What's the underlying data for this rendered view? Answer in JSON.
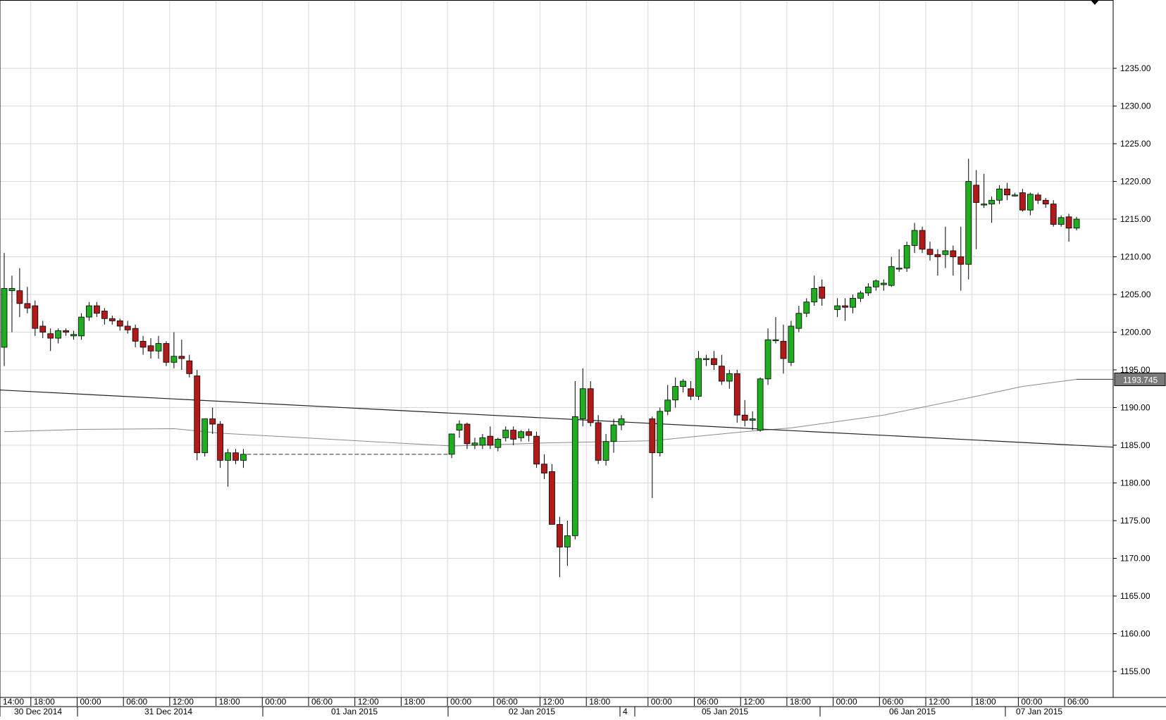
{
  "chart_data": {
    "type": "candlestick",
    "title": "",
    "xlabel": "",
    "ylabel": "",
    "ylim": [
      1150,
      1240
    ],
    "grid": true,
    "colors": {
      "up": "#1fae1f",
      "down": "#b21a1a",
      "wick": "#000000",
      "grid": "#d9d9d9",
      "moving_average": "#8a8a8a",
      "trendline": "#222222",
      "price_label_bg": "#7a7a7a"
    },
    "y_ticks": [
      "1155.00",
      "1160.00",
      "1165.00",
      "1170.00",
      "1175.00",
      "1180.00",
      "1185.00",
      "1190.00",
      "1195.00",
      "1200.00",
      "1205.00",
      "1210.00",
      "1215.00",
      "1220.00",
      "1225.00",
      "1230.00",
      "1235.00"
    ],
    "x_time_labels": [
      "14:00",
      "18:00",
      "00:00",
      "06:00",
      "12:00",
      "18:00",
      "00:00",
      "06:00",
      "12:00",
      "18:00",
      "00:00",
      "06:00",
      "12:00",
      "18:00",
      "00:00",
      "06:00",
      "12:00",
      "18:00",
      "00:00",
      "06:00",
      "12:00",
      "18:00",
      "00:00",
      "06:00"
    ],
    "x_date_labels": [
      "30 Dec 2014",
      "31 Dec 2014",
      "01 Jan 2015",
      "02 Jan 2015",
      "4",
      "05 Jan 2015",
      "06 Jan 2015",
      "07 Jan 2015"
    ],
    "last_price_label": "1193.745",
    "candles": [
      {
        "time": "30 Dec 2014 14:00",
        "open": 1198.0,
        "high": 1210.5,
        "low": 1195.5,
        "close": 1205.8
      },
      {
        "time": "30 Dec 2014 15:00",
        "open": 1205.5,
        "high": 1207.5,
        "low": 1200.0,
        "close": 1205.8
      },
      {
        "time": "30 Dec 2014 16:00",
        "open": 1205.5,
        "high": 1208.5,
        "low": 1202.0,
        "close": 1203.8
      },
      {
        "time": "30 Dec 2014 17:00",
        "open": 1203.8,
        "high": 1206.0,
        "low": 1202.5,
        "close": 1203.2
      },
      {
        "time": "30 Dec 2014 18:00",
        "open": 1203.5,
        "high": 1204.2,
        "low": 1199.5,
        "close": 1200.5
      },
      {
        "time": "30 Dec 2014 19:00",
        "open": 1200.8,
        "high": 1201.5,
        "low": 1199.2,
        "close": 1200.0
      },
      {
        "time": "30 Dec 2014 20:00",
        "open": 1199.8,
        "high": 1200.5,
        "low": 1197.5,
        "close": 1199.2
      },
      {
        "time": "30 Dec 2014 21:00",
        "open": 1199.2,
        "high": 1200.5,
        "low": 1198.5,
        "close": 1200.2
      },
      {
        "time": "30 Dec 2014 22:00",
        "open": 1200.2,
        "high": 1200.5,
        "low": 1199.5,
        "close": 1200.0
      },
      {
        "time": "30 Dec 2014 23:00",
        "open": 1199.5,
        "high": 1200.2,
        "low": 1199.0,
        "close": 1199.7
      },
      {
        "time": "31 Dec 2014 00:00",
        "open": 1199.5,
        "high": 1202.5,
        "low": 1199.0,
        "close": 1202.0
      },
      {
        "time": "31 Dec 2014 01:00",
        "open": 1202.0,
        "high": 1204.0,
        "low": 1201.5,
        "close": 1203.5
      },
      {
        "time": "31 Dec 2014 02:00",
        "open": 1203.5,
        "high": 1204.0,
        "low": 1202.0,
        "close": 1202.5
      },
      {
        "time": "31 Dec 2014 03:00",
        "open": 1202.8,
        "high": 1203.2,
        "low": 1201.0,
        "close": 1201.8
      },
      {
        "time": "31 Dec 2014 04:00",
        "open": 1201.8,
        "high": 1202.2,
        "low": 1201.0,
        "close": 1201.5
      },
      {
        "time": "31 Dec 2014 05:00",
        "open": 1201.5,
        "high": 1201.8,
        "low": 1200.2,
        "close": 1200.8
      },
      {
        "time": "31 Dec 2014 06:00",
        "open": 1200.8,
        "high": 1201.5,
        "low": 1199.8,
        "close": 1200.3
      },
      {
        "time": "31 Dec 2014 07:00",
        "open": 1200.5,
        "high": 1201.0,
        "low": 1198.0,
        "close": 1198.8
      },
      {
        "time": "31 Dec 2014 08:00",
        "open": 1198.8,
        "high": 1199.5,
        "low": 1197.0,
        "close": 1198.0
      },
      {
        "time": "31 Dec 2014 09:00",
        "open": 1198.2,
        "high": 1199.2,
        "low": 1196.5,
        "close": 1197.5
      },
      {
        "time": "31 Dec 2014 10:00",
        "open": 1197.5,
        "high": 1199.5,
        "low": 1196.5,
        "close": 1198.5
      },
      {
        "time": "31 Dec 2014 11:00",
        "open": 1198.5,
        "high": 1198.8,
        "low": 1195.5,
        "close": 1196.0
      },
      {
        "time": "31 Dec 2014 12:00",
        "open": 1196.0,
        "high": 1200.0,
        "low": 1195.2,
        "close": 1196.8
      },
      {
        "time": "31 Dec 2014 13:00",
        "open": 1196.8,
        "high": 1199.0,
        "low": 1195.0,
        "close": 1196.5
      },
      {
        "time": "31 Dec 2014 14:00",
        "open": 1196.2,
        "high": 1197.0,
        "low": 1194.0,
        "close": 1194.5
      },
      {
        "time": "31 Dec 2014 15:00",
        "open": 1194.2,
        "high": 1195.0,
        "low": 1183.0,
        "close": 1184.0
      },
      {
        "time": "31 Dec 2014 16:00",
        "open": 1184.0,
        "high": 1188.5,
        "low": 1183.5,
        "close": 1188.5
      },
      {
        "time": "31 Dec 2014 17:00",
        "open": 1188.5,
        "high": 1190.0,
        "low": 1186.5,
        "close": 1187.8
      },
      {
        "time": "31 Dec 2014 18:00",
        "open": 1187.8,
        "high": 1188.2,
        "low": 1182.0,
        "close": 1183.0
      },
      {
        "time": "31 Dec 2014 19:00",
        "open": 1183.0,
        "high": 1184.5,
        "low": 1179.5,
        "close": 1184.0
      },
      {
        "time": "31 Dec 2014 20:00",
        "open": 1184.0,
        "high": 1184.5,
        "low": 1182.5,
        "close": 1183.0
      },
      {
        "time": "31 Dec 2014 21:00",
        "open": 1183.0,
        "high": 1184.5,
        "low": 1182.0,
        "close": 1183.8
      },
      {
        "time": "02 Jan 2015 00:00",
        "open": 1183.8,
        "high": 1186.5,
        "low": 1183.3,
        "close": 1186.5
      },
      {
        "time": "02 Jan 2015 01:00",
        "open": 1187.0,
        "high": 1188.3,
        "low": 1186.0,
        "close": 1187.8
      },
      {
        "time": "02 Jan 2015 02:00",
        "open": 1187.8,
        "high": 1188.0,
        "low": 1184.5,
        "close": 1185.2
      },
      {
        "time": "02 Jan 2015 03:00",
        "open": 1185.0,
        "high": 1186.0,
        "low": 1184.5,
        "close": 1185.3
      },
      {
        "time": "02 Jan 2015 04:00",
        "open": 1185.0,
        "high": 1186.5,
        "low": 1184.5,
        "close": 1186.0
      },
      {
        "time": "02 Jan 2015 05:00",
        "open": 1186.2,
        "high": 1187.5,
        "low": 1184.5,
        "close": 1185.0
      },
      {
        "time": "02 Jan 2015 06:00",
        "open": 1184.7,
        "high": 1186.0,
        "low": 1184.2,
        "close": 1185.8
      },
      {
        "time": "02 Jan 2015 07:00",
        "open": 1186.0,
        "high": 1187.5,
        "low": 1185.5,
        "close": 1187.0
      },
      {
        "time": "02 Jan 2015 08:00",
        "open": 1187.0,
        "high": 1187.5,
        "low": 1185.0,
        "close": 1185.8
      },
      {
        "time": "02 Jan 2015 09:00",
        "open": 1186.0,
        "high": 1187.0,
        "low": 1185.5,
        "close": 1186.8
      },
      {
        "time": "02 Jan 2015 10:00",
        "open": 1186.8,
        "high": 1187.2,
        "low": 1185.5,
        "close": 1186.3
      },
      {
        "time": "02 Jan 2015 11:00",
        "open": 1186.2,
        "high": 1186.8,
        "low": 1182.0,
        "close": 1182.5
      },
      {
        "time": "02 Jan 2015 12:00",
        "open": 1182.5,
        "high": 1183.8,
        "low": 1180.5,
        "close": 1181.3
      },
      {
        "time": "02 Jan 2015 13:00",
        "open": 1181.5,
        "high": 1182.5,
        "low": 1174.5,
        "close": 1174.5
      },
      {
        "time": "02 Jan 2015 14:00",
        "open": 1174.5,
        "high": 1175.5,
        "low": 1167.5,
        "close": 1171.5
      },
      {
        "time": "02 Jan 2015 15:00",
        "open": 1171.5,
        "high": 1175.0,
        "low": 1169.0,
        "close": 1173.0
      },
      {
        "time": "02 Jan 2015 16:00",
        "open": 1173.0,
        "high": 1193.5,
        "low": 1172.5,
        "close": 1188.8
      },
      {
        "time": "02 Jan 2015 17:00",
        "open": 1188.5,
        "high": 1195.2,
        "low": 1187.5,
        "close": 1192.5
      },
      {
        "time": "02 Jan 2015 18:00",
        "open": 1192.5,
        "high": 1193.5,
        "low": 1187.5,
        "close": 1188.0
      },
      {
        "time": "02 Jan 2015 19:00",
        "open": 1188.0,
        "high": 1189.0,
        "low": 1182.5,
        "close": 1183.0
      },
      {
        "time": "02 Jan 2015 20:00",
        "open": 1183.0,
        "high": 1186.5,
        "low": 1182.3,
        "close": 1185.5
      },
      {
        "time": "02 Jan 2015 21:00",
        "open": 1185.5,
        "high": 1188.5,
        "low": 1184.0,
        "close": 1187.7
      },
      {
        "time": "02 Jan 2015 22:00",
        "open": 1187.7,
        "high": 1189.0,
        "low": 1187.0,
        "close": 1188.5
      },
      {
        "time": "05 Jan 2015 00:00",
        "open": 1188.5,
        "high": 1188.8,
        "low": 1178.0,
        "close": 1184.0
      },
      {
        "time": "05 Jan 2015 01:00",
        "open": 1184.0,
        "high": 1190.0,
        "low": 1183.5,
        "close": 1189.5
      },
      {
        "time": "05 Jan 2015 02:00",
        "open": 1189.5,
        "high": 1193.0,
        "low": 1189.0,
        "close": 1191.0
      },
      {
        "time": "05 Jan 2015 03:00",
        "open": 1191.0,
        "high": 1194.0,
        "low": 1190.0,
        "close": 1192.8
      },
      {
        "time": "05 Jan 2015 04:00",
        "open": 1192.8,
        "high": 1193.8,
        "low": 1192.0,
        "close": 1193.5
      },
      {
        "time": "05 Jan 2015 05:00",
        "open": 1192.5,
        "high": 1193.5,
        "low": 1191.0,
        "close": 1191.5
      },
      {
        "time": "05 Jan 2015 06:00",
        "open": 1191.5,
        "high": 1197.5,
        "low": 1191.0,
        "close": 1196.5
      },
      {
        "time": "05 Jan 2015 07:00",
        "open": 1196.5,
        "high": 1197.0,
        "low": 1195.5,
        "close": 1196.5
      },
      {
        "time": "05 Jan 2015 08:00",
        "open": 1196.5,
        "high": 1197.5,
        "low": 1195.0,
        "close": 1195.7
      },
      {
        "time": "05 Jan 2015 09:00",
        "open": 1195.5,
        "high": 1197.0,
        "low": 1193.0,
        "close": 1193.5
      },
      {
        "time": "05 Jan 2015 10:00",
        "open": 1193.5,
        "high": 1195.0,
        "low": 1192.5,
        "close": 1194.5
      },
      {
        "time": "05 Jan 2015 11:00",
        "open": 1194.5,
        "high": 1195.0,
        "low": 1188.0,
        "close": 1189.0
      },
      {
        "time": "05 Jan 2015 12:00",
        "open": 1189.0,
        "high": 1191.0,
        "low": 1187.5,
        "close": 1188.3
      },
      {
        "time": "05 Jan 2015 13:00",
        "open": 1188.3,
        "high": 1189.5,
        "low": 1187.0,
        "close": 1188.5
      },
      {
        "time": "05 Jan 2015 14:00",
        "open": 1187.0,
        "high": 1194.0,
        "low": 1186.8,
        "close": 1193.8
      },
      {
        "time": "05 Jan 2015 15:00",
        "open": 1193.8,
        "high": 1200.5,
        "low": 1193.0,
        "close": 1199.0
      },
      {
        "time": "05 Jan 2015 16:00",
        "open": 1199.0,
        "high": 1202.0,
        "low": 1198.5,
        "close": 1199.0
      },
      {
        "time": "05 Jan 2015 17:00",
        "open": 1198.8,
        "high": 1201.0,
        "low": 1194.5,
        "close": 1196.5
      },
      {
        "time": "05 Jan 2015 18:00",
        "open": 1196.0,
        "high": 1201.5,
        "low": 1195.5,
        "close": 1200.8
      },
      {
        "time": "05 Jan 2015 19:00",
        "open": 1200.5,
        "high": 1203.5,
        "low": 1200.0,
        "close": 1202.5
      },
      {
        "time": "05 Jan 2015 20:00",
        "open": 1202.5,
        "high": 1204.5,
        "low": 1202.0,
        "close": 1204.0
      },
      {
        "time": "05 Jan 2015 21:00",
        "open": 1204.0,
        "high": 1207.5,
        "low": 1203.5,
        "close": 1205.8
      },
      {
        "time": "05 Jan 2015 22:00",
        "open": 1206.0,
        "high": 1207.0,
        "low": 1203.5,
        "close": 1204.5
      },
      {
        "time": "06 Jan 2015 00:00",
        "open": 1203.0,
        "high": 1204.5,
        "low": 1202.0,
        "close": 1203.5
      },
      {
        "time": "06 Jan 2015 01:00",
        "open": 1203.5,
        "high": 1204.5,
        "low": 1201.5,
        "close": 1203.3
      },
      {
        "time": "06 Jan 2015 02:00",
        "open": 1203.3,
        "high": 1205.0,
        "low": 1202.5,
        "close": 1204.5
      },
      {
        "time": "06 Jan 2015 03:00",
        "open": 1204.5,
        "high": 1205.5,
        "low": 1204.0,
        "close": 1205.2
      },
      {
        "time": "06 Jan 2015 04:00",
        "open": 1205.2,
        "high": 1206.5,
        "low": 1204.8,
        "close": 1206.0
      },
      {
        "time": "06 Jan 2015 05:00",
        "open": 1206.0,
        "high": 1207.0,
        "low": 1205.5,
        "close": 1206.8
      },
      {
        "time": "06 Jan 2015 06:00",
        "open": 1206.3,
        "high": 1207.0,
        "low": 1205.5,
        "close": 1206.5
      },
      {
        "time": "06 Jan 2015 07:00",
        "open": 1206.2,
        "high": 1210.0,
        "low": 1206.0,
        "close": 1208.7
      },
      {
        "time": "06 Jan 2015 08:00",
        "open": 1208.5,
        "high": 1211.0,
        "low": 1208.0,
        "close": 1208.5
      },
      {
        "time": "06 Jan 2015 09:00",
        "open": 1208.5,
        "high": 1212.0,
        "low": 1208.0,
        "close": 1211.5
      },
      {
        "time": "06 Jan 2015 10:00",
        "open": 1211.5,
        "high": 1214.5,
        "low": 1210.5,
        "close": 1213.5
      },
      {
        "time": "06 Jan 2015 11:00",
        "open": 1213.5,
        "high": 1214.0,
        "low": 1210.5,
        "close": 1211.0
      },
      {
        "time": "06 Jan 2015 12:00",
        "open": 1211.0,
        "high": 1212.0,
        "low": 1209.5,
        "close": 1210.3
      },
      {
        "time": "06 Jan 2015 13:00",
        "open": 1210.3,
        "high": 1211.0,
        "low": 1207.5,
        "close": 1210.0
      },
      {
        "time": "06 Jan 2015 14:00",
        "open": 1210.3,
        "high": 1214.0,
        "low": 1208.5,
        "close": 1210.8
      },
      {
        "time": "06 Jan 2015 15:00",
        "open": 1210.8,
        "high": 1211.5,
        "low": 1207.5,
        "close": 1210.0
      },
      {
        "time": "06 Jan 2015 16:00",
        "open": 1210.0,
        "high": 1214.0,
        "low": 1205.5,
        "close": 1209.0
      },
      {
        "time": "06 Jan 2015 17:00",
        "open": 1209.0,
        "high": 1223.0,
        "low": 1207.0,
        "close": 1220.0
      },
      {
        "time": "06 Jan 2015 18:00",
        "open": 1219.5,
        "high": 1221.5,
        "low": 1211.0,
        "close": 1217.2
      },
      {
        "time": "06 Jan 2015 19:00",
        "open": 1217.0,
        "high": 1221.0,
        "low": 1216.5,
        "close": 1217.0
      },
      {
        "time": "06 Jan 2015 20:00",
        "open": 1217.0,
        "high": 1218.0,
        "low": 1214.5,
        "close": 1217.5
      },
      {
        "time": "06 Jan 2015 21:00",
        "open": 1217.5,
        "high": 1219.5,
        "low": 1217.0,
        "close": 1219.0
      },
      {
        "time": "06 Jan 2015 22:00",
        "open": 1219.0,
        "high": 1219.8,
        "low": 1217.5,
        "close": 1218.2
      },
      {
        "time": "06 Jan 2015 23:00",
        "open": 1218.2,
        "high": 1218.5,
        "low": 1218.0,
        "close": 1218.2
      },
      {
        "time": "07 Jan 2015 00:00",
        "open": 1218.5,
        "high": 1219.0,
        "low": 1216.0,
        "close": 1216.2
      },
      {
        "time": "07 Jan 2015 01:00",
        "open": 1216.2,
        "high": 1218.5,
        "low": 1215.5,
        "close": 1218.3
      },
      {
        "time": "07 Jan 2015 02:00",
        "open": 1218.2,
        "high": 1218.5,
        "low": 1217.0,
        "close": 1217.5
      },
      {
        "time": "07 Jan 2015 03:00",
        "open": 1217.5,
        "high": 1217.8,
        "low": 1216.5,
        "close": 1217.0
      },
      {
        "time": "07 Jan 2015 04:00",
        "open": 1217.0,
        "high": 1217.5,
        "low": 1214.0,
        "close": 1214.3
      },
      {
        "time": "07 Jan 2015 05:00",
        "open": 1214.3,
        "high": 1215.5,
        "low": 1214.0,
        "close": 1215.2
      },
      {
        "time": "07 Jan 2015 06:00",
        "open": 1215.3,
        "high": 1215.7,
        "low": 1212.0,
        "close": 1213.8
      },
      {
        "time": "07 Jan 2015 07:00",
        "open": 1213.8,
        "high": 1215.3,
        "low": 1213.5,
        "close": 1215.0
      }
    ],
    "gap_line": {
      "from_time": "31 Dec 2014 21:00",
      "to_time": "02 Jan 2015 00:00",
      "value": 1183.8
    },
    "moving_average": [
      {
        "time": "30 Dec 2014 14:00",
        "value": 1186.8
      },
      {
        "time": "31 Dec 2014 00:00",
        "value": 1187.1
      },
      {
        "time": "31 Dec 2014 12:00",
        "value": 1187.2
      },
      {
        "time": "31 Dec 2014 18:00",
        "value": 1186.6
      },
      {
        "time": "02 Jan 2015 00:00",
        "value": 1184.9
      },
      {
        "time": "02 Jan 2015 12:00",
        "value": 1185.3
      },
      {
        "time": "05 Jan 2015 00:00",
        "value": 1185.6
      },
      {
        "time": "05 Jan 2015 12:00",
        "value": 1186.8
      },
      {
        "time": "05 Jan 2015 18:00",
        "value": 1187.3
      },
      {
        "time": "06 Jan 2015 06:00",
        "value": 1189.0
      },
      {
        "time": "06 Jan 2015 18:00",
        "value": 1191.5
      },
      {
        "time": "07 Jan 2015 00:00",
        "value": 1192.8
      },
      {
        "time": "07 Jan 2015 07:00",
        "value": 1193.745
      }
    ],
    "trendline": [
      {
        "time": "30 Dec 2014 14:00",
        "value": 1192.3
      },
      {
        "time": "07 Jan 2015 07:00",
        "value": 1185.0
      }
    ]
  }
}
